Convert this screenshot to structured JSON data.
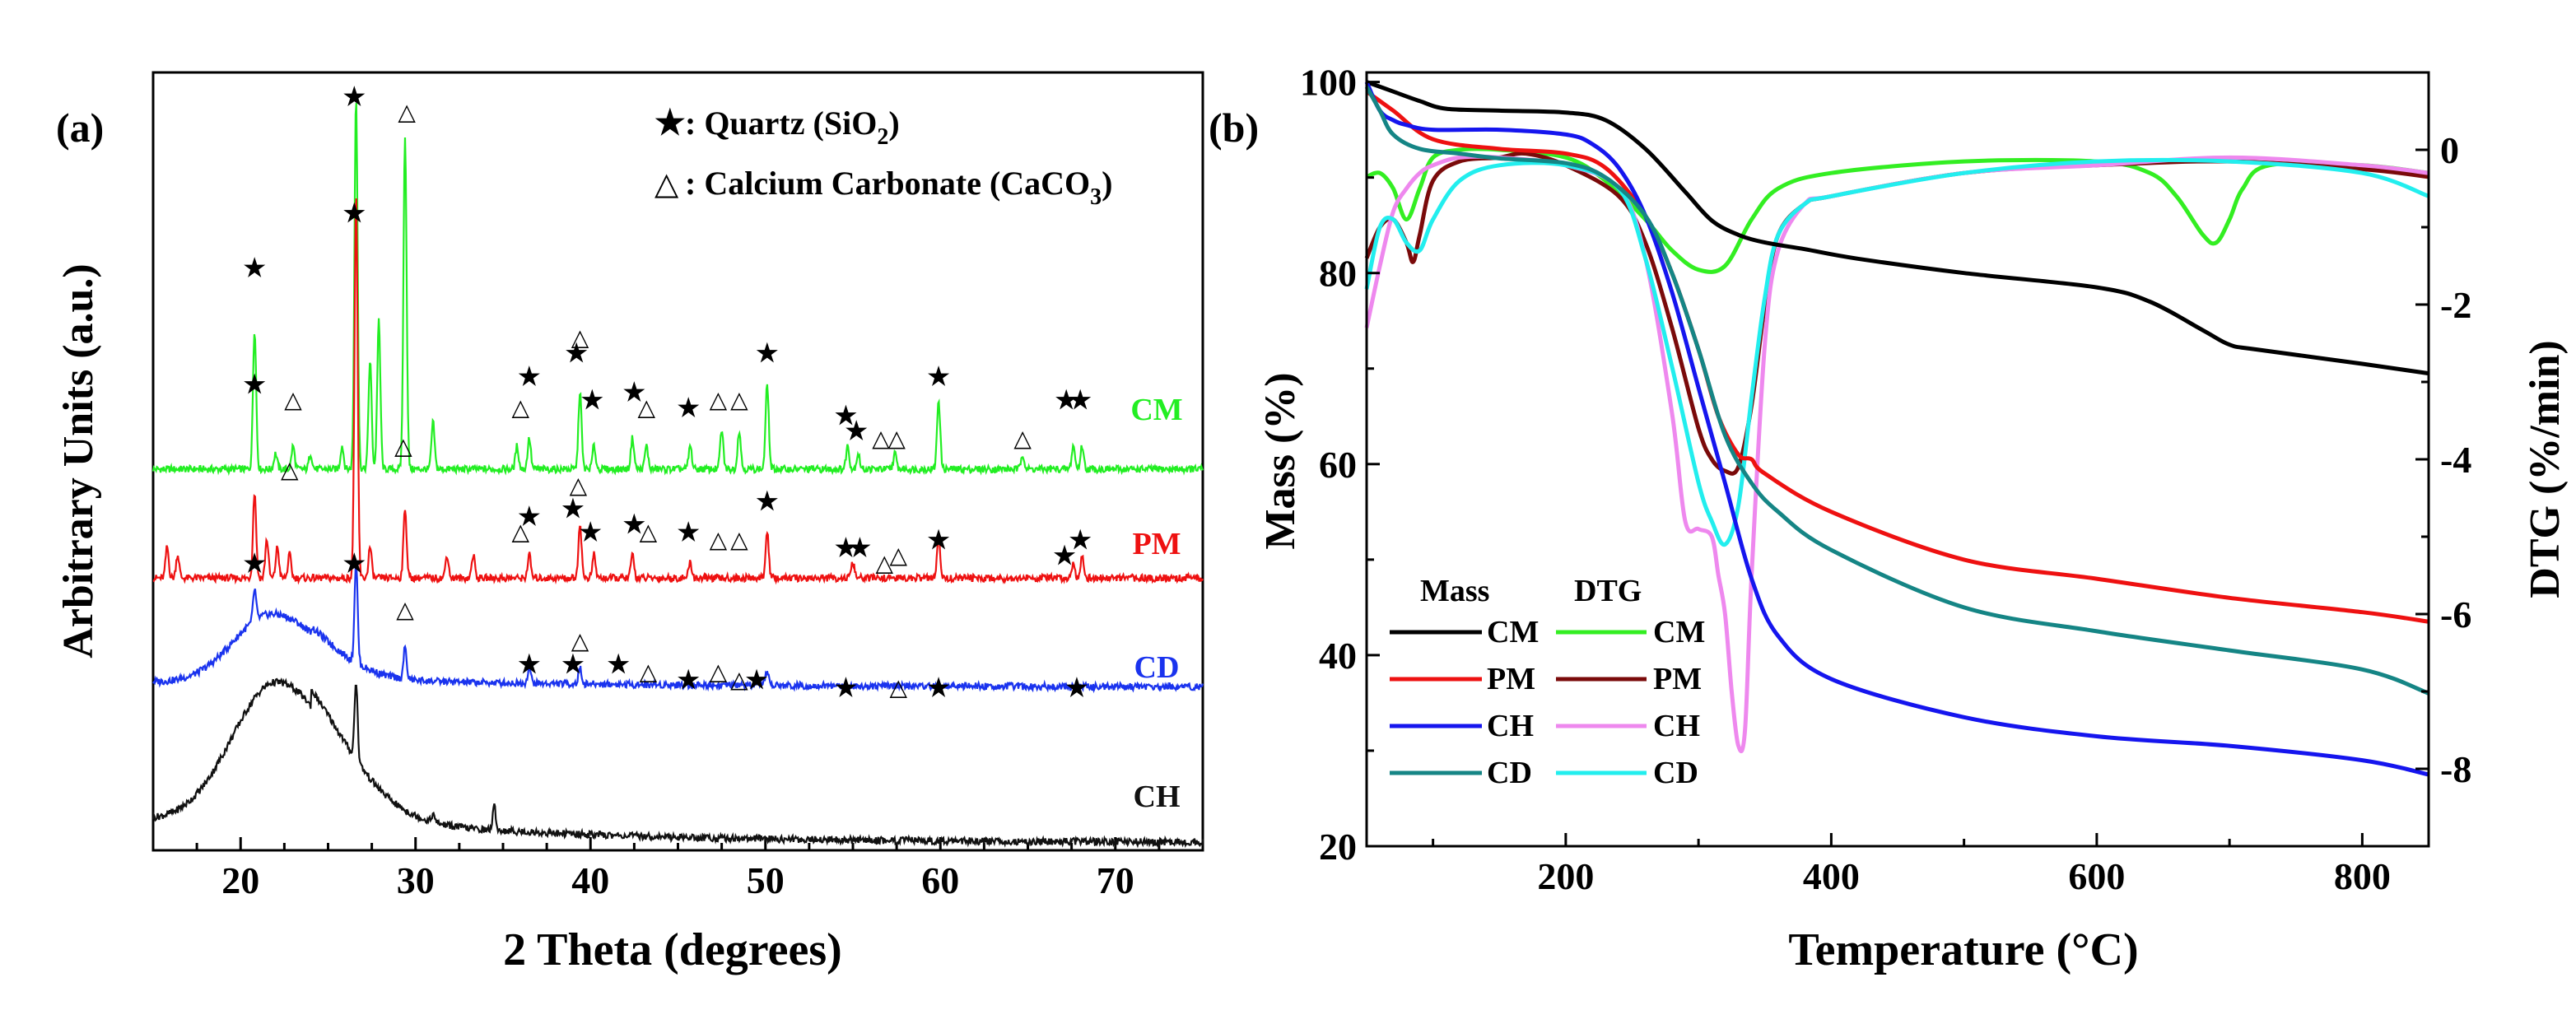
{
  "colors": {
    "CM": "#22ee22",
    "PM": "#ee1111",
    "CD": "#1a33ee",
    "CH": "#111111",
    "massCM": "#000000",
    "massPM": "#ee1111",
    "massCH": "#1515ee",
    "massCD": "#158585",
    "dtgCM": "#33ee22",
    "dtgPM": "#7a0a0a",
    "dtgCH": "#ee88ee",
    "dtgCD": "#22eeee"
  },
  "chart_data": [
    {
      "panel_label": "(a)",
      "type": "line",
      "title": "",
      "xlabel": "2 Theta (degrees)",
      "ylabel": "Arbitrary Units (a.u.)",
      "xlim": [
        15,
        75
      ],
      "ylim": [
        0,
        100
      ],
      "xticks": [
        20,
        30,
        40,
        50,
        60,
        70
      ],
      "xtick_labels": [
        "20",
        "30",
        "40",
        "50",
        "60",
        "70"
      ],
      "legend": {
        "quartz_prefix": ": Quartz (SiO",
        "quartz_sub": "2",
        "quartz_suffix": ")",
        "calcite_prefix": ": Calcium Carbonate (CaCO",
        "calcite_sub": "3",
        "calcite_suffix": ")"
      },
      "series": [
        {
          "name": "CM",
          "label": "CM",
          "baseline": 49,
          "peaks": [
            [
              20.8,
              18
            ],
            [
              22,
              2
            ],
            [
              23,
              3
            ],
            [
              24,
              2
            ],
            [
              25.8,
              3
            ],
            [
              26.6,
              48
            ],
            [
              27.4,
              14
            ],
            [
              27.9,
              19
            ],
            [
              29.4,
              43
            ],
            [
              31,
              6
            ],
            [
              35.8,
              3
            ],
            [
              36.5,
              4
            ],
            [
              39.4,
              10
            ],
            [
              40.2,
              3
            ],
            [
              42.4,
              4
            ],
            [
              43.2,
              3
            ],
            [
              45.7,
              3
            ],
            [
              47.5,
              5
            ],
            [
              48.5,
              5
            ],
            [
              50.1,
              11
            ],
            [
              54.7,
              3
            ],
            [
              55.3,
              2
            ],
            [
              57.4,
              2
            ],
            [
              59.9,
              9
            ],
            [
              64.7,
              2
            ],
            [
              67.6,
              3
            ],
            [
              68.1,
              3
            ]
          ],
          "stars": [
            [
              20.8,
              75
            ],
            [
              26.5,
              97
            ],
            [
              26.5,
              82
            ],
            [
              36.5,
              61
            ],
            [
              39.2,
              64
            ],
            [
              40.1,
              58
            ],
            [
              42.5,
              59
            ],
            [
              45.6,
              57
            ],
            [
              50.1,
              64
            ],
            [
              54.6,
              56
            ],
            [
              55.2,
              54
            ],
            [
              59.9,
              61
            ],
            [
              67.2,
              58
            ],
            [
              68,
              58
            ],
            [
              20.8,
              60
            ]
          ],
          "triangles": [
            [
              29.5,
              95
            ],
            [
              23,
              58
            ],
            [
              39.4,
              66
            ],
            [
              36,
              57
            ],
            [
              43.2,
              57
            ],
            [
              47.3,
              58
            ],
            [
              48.5,
              58
            ],
            [
              57.5,
              53
            ],
            [
              56.6,
              53
            ],
            [
              64.7,
              53
            ]
          ]
        },
        {
          "name": "PM",
          "label": "PM",
          "baseline": 35,
          "peaks": [
            [
              15.8,
              4
            ],
            [
              16.4,
              3
            ],
            [
              20.8,
              11
            ],
            [
              21.5,
              5
            ],
            [
              22.1,
              4
            ],
            [
              22.8,
              3
            ],
            [
              26.6,
              49
            ],
            [
              27.4,
              4
            ],
            [
              29.4,
              9
            ],
            [
              31.8,
              3
            ],
            [
              33.3,
              3
            ],
            [
              36.5,
              3
            ],
            [
              39.4,
              7
            ],
            [
              40.2,
              3
            ],
            [
              42.4,
              3
            ],
            [
              45.7,
              2
            ],
            [
              50.1,
              6
            ],
            [
              55,
              2
            ],
            [
              59.9,
              5
            ],
            [
              67.6,
              2
            ],
            [
              68.1,
              3
            ]
          ],
          "stars": [
            [
              36.5,
              43
            ],
            [
              39,
              44
            ],
            [
              40,
              41
            ],
            [
              42.5,
              42
            ],
            [
              45.6,
              41
            ],
            [
              50.1,
              45
            ],
            [
              54.6,
              39
            ],
            [
              55.4,
              39
            ],
            [
              59.9,
              40
            ],
            [
              67.1,
              38
            ],
            [
              68,
              40
            ]
          ],
          "triangles": [
            [
              22.8,
              49
            ],
            [
              29.3,
              52
            ],
            [
              39.3,
              47
            ],
            [
              36,
              41
            ],
            [
              43.3,
              41
            ],
            [
              47.3,
              40
            ],
            [
              48.5,
              40
            ],
            [
              57.6,
              38
            ],
            [
              56.8,
              37
            ]
          ]
        },
        {
          "name": "CD",
          "label": "CD",
          "baseline": 21,
          "hump": [
            21.8,
            9,
            2.2
          ],
          "peaks": [
            [
              20.8,
              4
            ],
            [
              26.6,
              13
            ],
            [
              29.4,
              4
            ],
            [
              36.5,
              2
            ],
            [
              39.4,
              2
            ],
            [
              50.1,
              2
            ]
          ],
          "stars": [
            [
              20.8,
              37
            ],
            [
              26.5,
              37
            ],
            [
              36.5,
              24
            ],
            [
              39,
              24
            ],
            [
              41.6,
              24
            ],
            [
              45.6,
              22
            ],
            [
              49.5,
              22
            ],
            [
              54.6,
              21
            ],
            [
              59.9,
              21
            ],
            [
              67.8,
              21
            ]
          ],
          "triangles": [
            [
              29.4,
              31
            ],
            [
              39.4,
              27
            ],
            [
              43.3,
              23
            ],
            [
              47.3,
              23
            ],
            [
              48.5,
              22
            ],
            [
              57.6,
              21
            ]
          ]
        },
        {
          "name": "CH",
          "label": "CH",
          "baseline": 1,
          "hump": [
            22.1,
            19,
            2.6
          ],
          "peaks": [
            [
              26.6,
              10
            ],
            [
              34.5,
              3
            ],
            [
              31,
              1
            ]
          ],
          "stars": [],
          "triangles": []
        }
      ]
    },
    {
      "panel_label": "(b)",
      "type": "line",
      "title": "",
      "xlabel": "Temperature (°C)",
      "ylabel": "Mass (%)",
      "y2label": "DTG (%/min)",
      "xlim": [
        50,
        850
      ],
      "ylim": [
        20,
        101
      ],
      "y2lim": [
        -9,
        1
      ],
      "xticks": [
        200,
        400,
        600,
        800
      ],
      "xtick_labels": [
        "200",
        "400",
        "600",
        "800"
      ],
      "yticks": [
        20,
        40,
        60,
        80,
        100
      ],
      "ytick_labels": [
        "20",
        "40",
        "60",
        "80",
        "100"
      ],
      "y2ticks": [
        0,
        -2,
        -4,
        -6,
        -8
      ],
      "y2tick_labels": [
        "0",
        "-2",
        "-4",
        "-6",
        "-8"
      ],
      "legend": {
        "mass_header": "Mass",
        "dtg_header": "DTG",
        "entries": [
          "CM",
          "PM",
          "CH",
          "CD"
        ]
      },
      "mass_series": [
        {
          "name": "CM",
          "x": [
            50,
            70,
            90,
            110,
            150,
            200,
            230,
            260,
            290,
            310,
            330,
            350,
            380,
            420,
            500,
            600,
            640,
            680,
            700,
            720,
            800,
            850
          ],
          "y": [
            100,
            99,
            98,
            97.2,
            97,
            96.8,
            96,
            93,
            88.5,
            85.5,
            84,
            83.2,
            82.5,
            81.5,
            80,
            78.5,
            77,
            74,
            72.5,
            72,
            70.5,
            69.5
          ]
        },
        {
          "name": "PM",
          "x": [
            50,
            70,
            100,
            150,
            200,
            230,
            260,
            280,
            300,
            315,
            330,
            340,
            350,
            400,
            500,
            600,
            700,
            800,
            850
          ],
          "y": [
            99,
            97,
            94,
            93,
            92.5,
            91,
            86,
            80,
            72,
            65,
            61,
            60.5,
            59,
            55,
            50,
            48,
            46,
            44.5,
            43.5
          ]
        },
        {
          "name": "CH",
          "x": [
            50,
            60,
            70,
            80,
            100,
            150,
            200,
            220,
            240,
            260,
            280,
            300,
            320,
            340,
            360,
            400,
            500,
            600,
            700,
            800,
            850
          ],
          "y": [
            100,
            97,
            96,
            95.5,
            95,
            95,
            94.5,
            93.5,
            91,
            86,
            78,
            68,
            58,
            48,
            42,
            37.5,
            33.5,
            31.5,
            30.5,
            29,
            27.5
          ]
        },
        {
          "name": "CD",
          "x": [
            50,
            60,
            70,
            90,
            120,
            150,
            200,
            230,
            260,
            280,
            300,
            320,
            340,
            360,
            400,
            500,
            600,
            700,
            800,
            850
          ],
          "y": [
            99.5,
            97,
            94.5,
            93,
            92.5,
            92,
            91.5,
            90,
            86,
            80,
            72,
            63,
            58,
            55,
            51,
            45,
            42.5,
            40.5,
            38.5,
            36
          ]
        }
      ],
      "dtg_series": [
        {
          "name": "CM",
          "x": [
            50,
            60,
            70,
            80,
            90,
            100,
            120,
            150,
            200,
            230,
            260,
            280,
            300,
            320,
            340,
            360,
            400,
            500,
            600,
            640,
            660,
            680,
            690,
            700,
            710,
            730,
            800,
            850
          ],
          "y": [
            -0.35,
            -0.3,
            -0.5,
            -0.9,
            -0.5,
            -0.1,
            0,
            0,
            -0.1,
            -0.4,
            -0.9,
            -1.3,
            -1.55,
            -1.5,
            -0.9,
            -0.5,
            -0.3,
            -0.15,
            -0.15,
            -0.3,
            -0.6,
            -1.1,
            -1.2,
            -0.9,
            -0.5,
            -0.2,
            -0.2,
            -0.3
          ]
        },
        {
          "name": "PM",
          "x": [
            50,
            60,
            70,
            80,
            85,
            90,
            100,
            120,
            150,
            170,
            200,
            240,
            260,
            280,
            300,
            310,
            320,
            330,
            340,
            350,
            360,
            380,
            400,
            500,
            600,
            700,
            800,
            850
          ],
          "y": [
            -1.4,
            -1.0,
            -0.9,
            -1.2,
            -1.45,
            -1.1,
            -0.4,
            -0.15,
            -0.1,
            -0.05,
            -0.2,
            -0.6,
            -1.2,
            -2.3,
            -3.6,
            -4.0,
            -4.15,
            -4.1,
            -3.3,
            -2.0,
            -1.1,
            -0.7,
            -0.6,
            -0.3,
            -0.2,
            -0.15,
            -0.25,
            -0.35
          ]
        },
        {
          "name": "CH",
          "x": [
            50,
            60,
            70,
            80,
            90,
            100,
            120,
            150,
            200,
            240,
            260,
            280,
            290,
            300,
            310,
            315,
            320,
            325,
            330,
            335,
            340,
            350,
            360,
            380,
            400,
            500,
            600,
            700,
            800,
            850
          ],
          "y": [
            -2.3,
            -1.5,
            -0.8,
            -0.5,
            -0.3,
            -0.2,
            -0.1,
            -0.1,
            -0.2,
            -0.5,
            -1.4,
            -3.4,
            -4.8,
            -4.9,
            -5.0,
            -5.5,
            -6.0,
            -7.0,
            -7.7,
            -7.5,
            -5.5,
            -2.5,
            -1.3,
            -0.7,
            -0.6,
            -0.3,
            -0.2,
            -0.1,
            -0.2,
            -0.3
          ]
        },
        {
          "name": "CD",
          "x": [
            50,
            60,
            70,
            80,
            90,
            100,
            120,
            150,
            200,
            240,
            260,
            280,
            300,
            310,
            320,
            330,
            340,
            350,
            360,
            380,
            400,
            500,
            600,
            700,
            800,
            850
          ],
          "y": [
            -1.8,
            -1.0,
            -0.9,
            -1.2,
            -1.3,
            -0.9,
            -0.4,
            -0.2,
            -0.2,
            -0.5,
            -1.4,
            -2.8,
            -4.3,
            -4.8,
            -5.1,
            -4.6,
            -3.2,
            -1.9,
            -1.1,
            -0.7,
            -0.6,
            -0.3,
            -0.15,
            -0.15,
            -0.3,
            -0.6
          ]
        }
      ]
    }
  ]
}
